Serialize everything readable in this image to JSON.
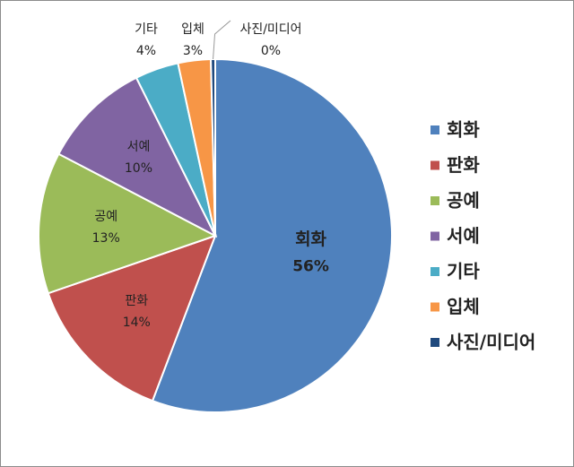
{
  "chart_data": {
    "type": "pie",
    "categories": [
      "회화",
      "판화",
      "공예",
      "서예",
      "기타",
      "입체",
      "사진/미디어"
    ],
    "values": [
      56,
      14,
      13,
      10,
      4,
      3,
      0.4
    ],
    "value_labels": [
      "56%",
      "14%",
      "13%",
      "10%",
      "4%",
      "3%",
      "0%"
    ],
    "colors": [
      "#4f81bd",
      "#c0504d",
      "#9bbb59",
      "#8064a2",
      "#4bacc6",
      "#f79646",
      "#1f497d"
    ],
    "legend": "right"
  }
}
